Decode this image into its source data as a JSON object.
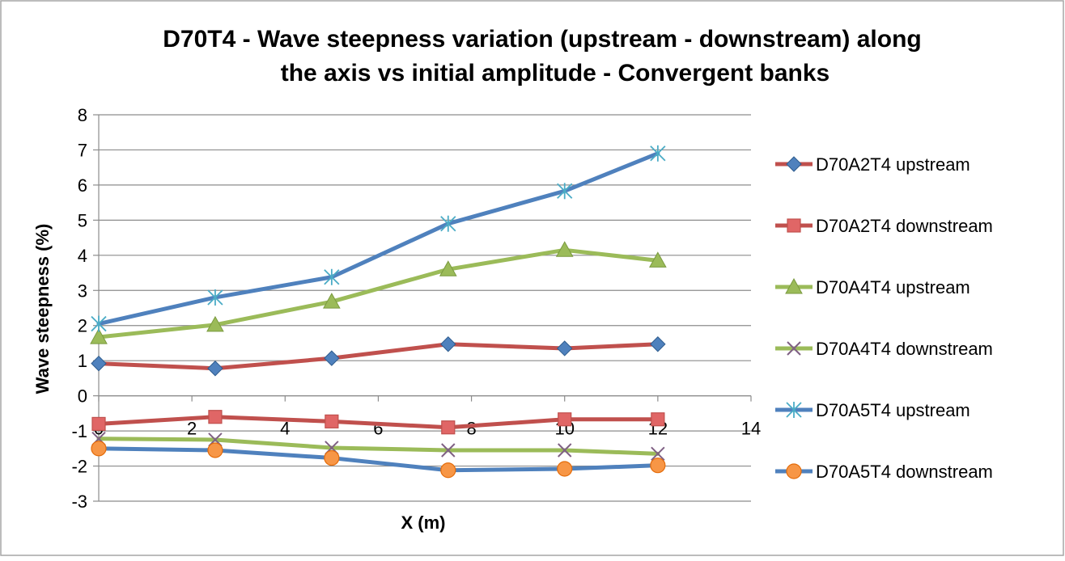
{
  "chart_data": {
    "type": "line",
    "title_lines": [
      "D70T4 - Wave steepness variation (upstream - downstream) along",
      "the axis vs initial amplitude - Convergent banks"
    ],
    "xlabel": "X (m)",
    "ylabel": "Wave steepness (%)",
    "xlim": [
      0,
      14
    ],
    "ylim": [
      -3,
      8
    ],
    "xticks": [
      0,
      2,
      4,
      6,
      8,
      10,
      12,
      14
    ],
    "yticks": [
      -3,
      -2,
      -1,
      0,
      1,
      2,
      3,
      4,
      5,
      6,
      7,
      8
    ],
    "grid": "horizontal",
    "legend_position": "right",
    "series": [
      {
        "name": "D70A2T4 upstream",
        "line_color": "#c0504d",
        "marker": "diamond",
        "marker_color": "#4f81bd",
        "x": [
          0,
          2.5,
          5,
          7.5,
          10,
          12
        ],
        "y": [
          0.92,
          0.78,
          1.07,
          1.47,
          1.35,
          1.47
        ]
      },
      {
        "name": "D70A2T4 downstream",
        "line_color": "#c0504d",
        "marker": "square",
        "marker_color": "#e06666",
        "x": [
          0,
          2.5,
          5,
          7.5,
          10,
          12
        ],
        "y": [
          -0.8,
          -0.6,
          -0.73,
          -0.9,
          -0.67,
          -0.67
        ]
      },
      {
        "name": "D70A4T4 upstream",
        "line_color": "#9bbb59",
        "marker": "triangle",
        "marker_color": "#9bbb59",
        "x": [
          0,
          2.5,
          5,
          7.5,
          10,
          12
        ],
        "y": [
          1.67,
          2.02,
          2.68,
          3.6,
          4.15,
          3.85
        ]
      },
      {
        "name": "D70A4T4 downstream",
        "line_color": "#9bbb59",
        "marker": "x",
        "marker_color": "#7f6084",
        "x": [
          0,
          2.5,
          5,
          7.5,
          10,
          12
        ],
        "y": [
          -1.22,
          -1.25,
          -1.48,
          -1.55,
          -1.55,
          -1.65
        ]
      },
      {
        "name": "D70A5T4 upstream",
        "line_color": "#4f81bd",
        "marker": "star",
        "marker_color": "#4bacc6",
        "x": [
          0,
          2.5,
          5,
          7.5,
          10,
          12
        ],
        "y": [
          2.05,
          2.8,
          3.38,
          4.9,
          5.83,
          6.9
        ]
      },
      {
        "name": "D70A5T4 downstream",
        "line_color": "#4f81bd",
        "marker": "circle",
        "marker_color": "#f79646",
        "x": [
          0,
          2.5,
          5,
          7.5,
          10,
          12
        ],
        "y": [
          -1.5,
          -1.55,
          -1.77,
          -2.12,
          -2.08,
          -1.98
        ]
      }
    ]
  }
}
